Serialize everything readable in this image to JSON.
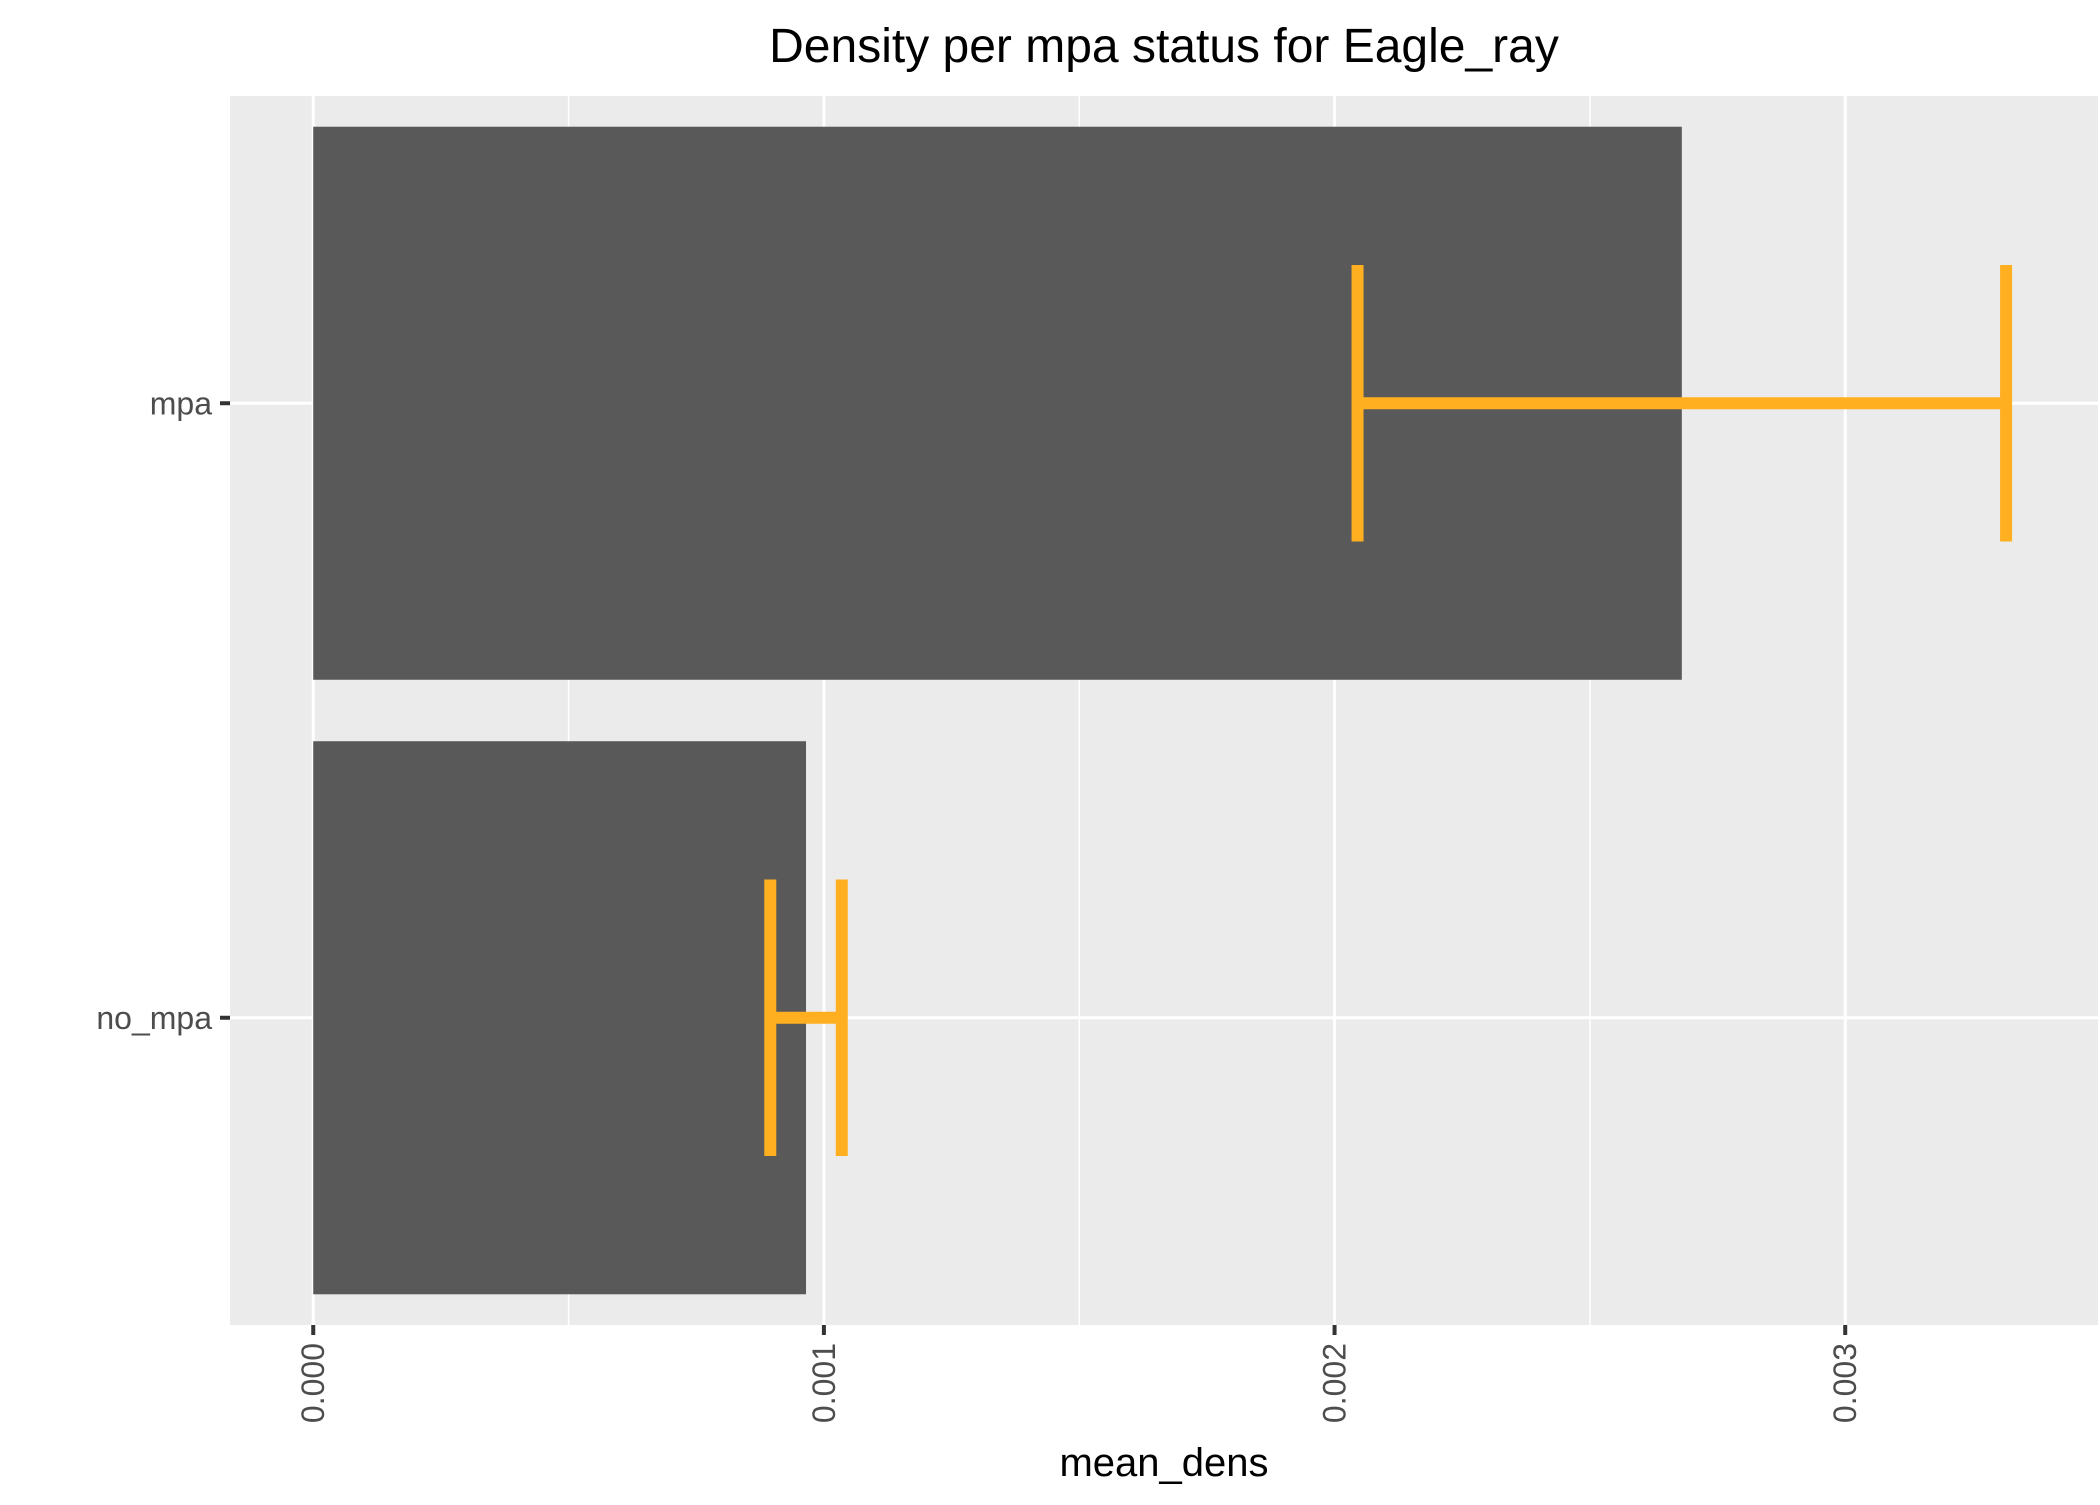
{
  "chart_data": {
    "type": "bar",
    "orientation": "horizontal",
    "title": "Density per mpa status for Eagle_ray",
    "xlabel": "mean_dens",
    "ylabel": "",
    "categories": [
      "mpa",
      "no_mpa"
    ],
    "values": [
      0.00268,
      0.000965
    ],
    "error_bars": [
      {
        "category": "mpa",
        "lower": 0.002045,
        "upper": 0.003315
      },
      {
        "category": "no_mpa",
        "lower": 0.000895,
        "upper": 0.001035
      }
    ],
    "xlim": [
      -0.000163,
      0.003495
    ],
    "x_ticks": [
      0,
      0.001,
      0.002,
      0.003
    ],
    "x_tick_labels": [
      "0.000",
      "0.001",
      "0.002",
      "0.003"
    ],
    "x_tick_rotation": "vertical",
    "grid": true,
    "legend": "none",
    "colors": {
      "bar": "#595959",
      "error_bar": "#FFAF1F",
      "panel": "#EBEBEB",
      "grid": "#FFFFFF"
    }
  }
}
